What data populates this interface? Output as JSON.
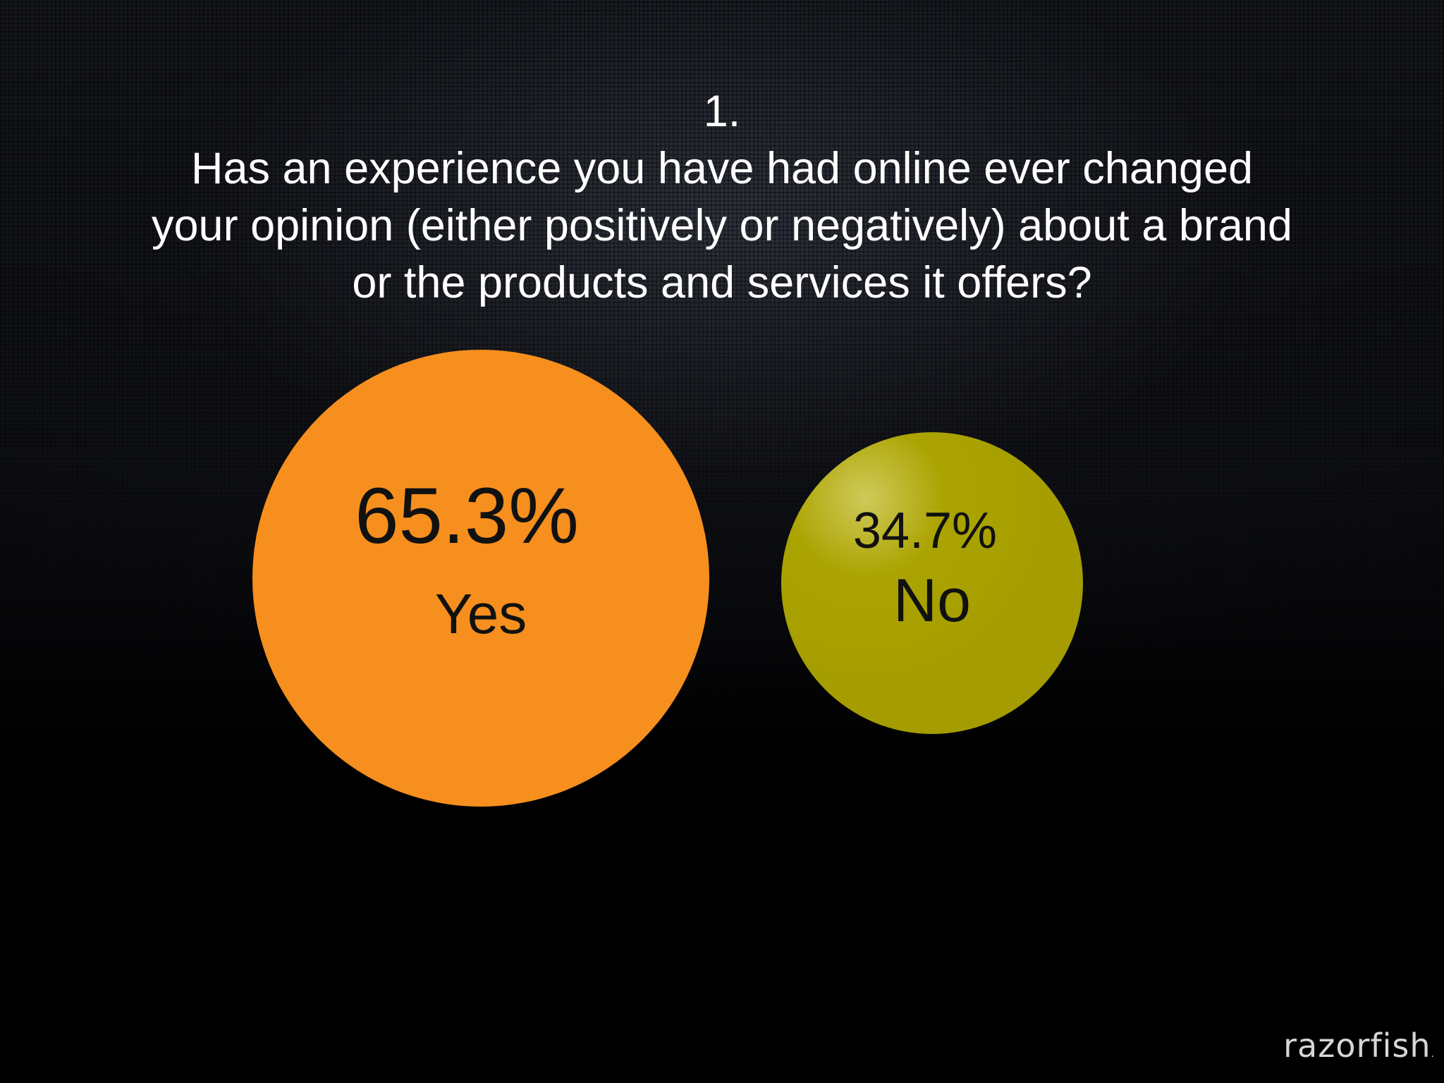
{
  "question": {
    "number": "1.",
    "lines": [
      "Has an experience you have had online ever changed",
      "your opinion (either positively or negatively) about a brand",
      "or the products and services it offers?"
    ]
  },
  "chart_data": {
    "type": "bubble",
    "title": "",
    "series": [
      {
        "category": "Yes",
        "value": 65.3,
        "label": "65.3%",
        "color": "#F68F1E"
      },
      {
        "category": "No",
        "value": 34.7,
        "label": "34.7%",
        "color": "#A8A000"
      }
    ]
  },
  "brand": {
    "logo_text": "razorfish",
    "logo_suffix": "."
  }
}
